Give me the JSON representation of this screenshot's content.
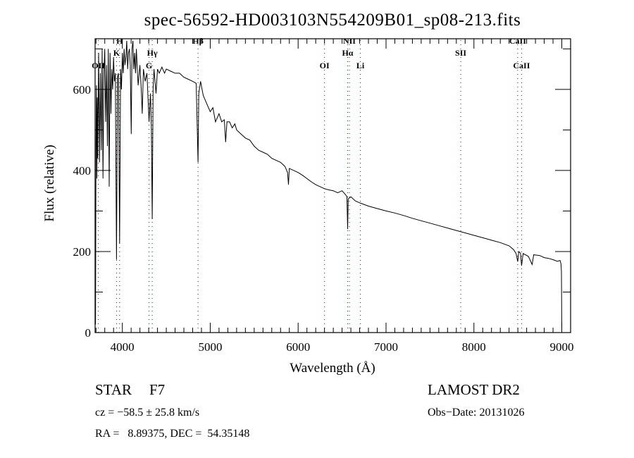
{
  "chart_data": {
    "type": "line",
    "title": "spec-56592-HD003103N554209B01_sp08-213.fits",
    "xlabel": "Wavelength (Å)",
    "ylabel": "Flux (relative)",
    "xlim": [
      3690,
      9100
    ],
    "ylim": [
      0,
      725
    ],
    "xticks": [
      4000,
      5000,
      6000,
      7000,
      8000,
      9000
    ],
    "yticks": [
      0,
      200,
      400,
      600
    ],
    "grid": false,
    "line_color": "#000000",
    "marker_line_color": "#8b0000",
    "lines": [
      {
        "name": "OII",
        "wavelength": 3727,
        "row": 3
      },
      {
        "name": "K",
        "wavelength": 3934,
        "row": 2
      },
      {
        "name": "H",
        "wavelength": 3969,
        "row": 1
      },
      {
        "name": "G",
        "wavelength": 4304,
        "row": 3
      },
      {
        "name": "Hγ",
        "wavelength": 4340,
        "row": 2
      },
      {
        "name": "Hβ",
        "wavelength": 4861,
        "row": 1
      },
      {
        "name": "OI",
        "wavelength": 6300,
        "row": 3
      },
      {
        "name": "Hα",
        "wavelength": 6563,
        "row": 2
      },
      {
        "name": "NII",
        "wavelength": 6583,
        "row": 1
      },
      {
        "name": "Li",
        "wavelength": 6708,
        "row": 3
      },
      {
        "name": "SII",
        "wavelength": 7850,
        "row": 2
      },
      {
        "name": "CaII",
        "wavelength": 8498,
        "row": 1
      },
      {
        "name": "CaII",
        "wavelength": 8542,
        "row": 3
      }
    ],
    "series": [
      {
        "name": "spectrum",
        "x": [
          3695,
          3700,
          3705,
          3710,
          3715,
          3720,
          3730,
          3740,
          3750,
          3760,
          3770,
          3780,
          3790,
          3800,
          3810,
          3820,
          3830,
          3840,
          3850,
          3860,
          3870,
          3880,
          3890,
          3900,
          3910,
          3920,
          3934,
          3945,
          3955,
          3969,
          3980,
          3990,
          4000,
          4010,
          4020,
          4030,
          4040,
          4050,
          4060,
          4070,
          4080,
          4090,
          4101,
          4110,
          4120,
          4130,
          4140,
          4150,
          4160,
          4170,
          4180,
          4200,
          4215,
          4226,
          4240,
          4260,
          4280,
          4304,
          4320,
          4330,
          4340,
          4350,
          4360,
          4383,
          4400,
          4420,
          4450,
          4480,
          4500,
          4550,
          4600,
          4650,
          4700,
          4750,
          4800,
          4840,
          4861,
          4870,
          4890,
          4920,
          4950,
          5000,
          5030,
          5060,
          5100,
          5130,
          5160,
          5175,
          5190,
          5220,
          5250,
          5280,
          5300,
          5350,
          5400,
          5450,
          5500,
          5550,
          5600,
          5650,
          5700,
          5750,
          5800,
          5850,
          5880,
          5890,
          5900,
          5950,
          6000,
          6050,
          6100,
          6150,
          6200,
          6250,
          6300,
          6350,
          6400,
          6450,
          6500,
          6540,
          6555,
          6563,
          6570,
          6600,
          6650,
          6700,
          6800,
          6900,
          7000,
          7100,
          7200,
          7300,
          7400,
          7500,
          7600,
          7700,
          7800,
          7900,
          8000,
          8100,
          8200,
          8300,
          8400,
          8450,
          8480,
          8498,
          8510,
          8530,
          8542,
          8560,
          8620,
          8662,
          8680,
          8750,
          8800,
          8850,
          8900,
          8950,
          8980,
          8990,
          8996,
          9000
        ],
        "y": [
          20,
          450,
          610,
          380,
          580,
          430,
          690,
          420,
          640,
          450,
          700,
          380,
          640,
          700,
          520,
          660,
          460,
          700,
          360,
          690,
          540,
          650,
          600,
          680,
          620,
          640,
          180,
          630,
          640,
          220,
          650,
          600,
          690,
          640,
          700,
          660,
          680,
          720,
          650,
          690,
          700,
          660,
          490,
          700,
          720,
          650,
          690,
          640,
          700,
          650,
          610,
          660,
          600,
          540,
          650,
          620,
          640,
          520,
          590,
          500,
          280,
          600,
          650,
          590,
          650,
          640,
          655,
          640,
          650,
          645,
          640,
          640,
          630,
          625,
          620,
          615,
          420,
          590,
          620,
          585,
          570,
          545,
          555,
          520,
          540,
          520,
          525,
          470,
          520,
          520,
          505,
          515,
          500,
          490,
          480,
          475,
          460,
          450,
          445,
          440,
          430,
          425,
          420,
          410,
          395,
          365,
          405,
          400,
          395,
          388,
          380,
          372,
          365,
          360,
          355,
          352,
          350,
          345,
          350,
          340,
          335,
          255,
          330,
          335,
          325,
          320,
          312,
          306,
          300,
          295,
          289,
          282,
          276,
          270,
          264,
          258,
          252,
          246,
          240,
          234,
          228,
          222,
          214,
          205,
          195,
          175,
          200,
          196,
          165,
          195,
          188,
          168,
          192,
          190,
          185,
          183,
          180,
          176,
          178,
          170,
          150,
          0
        ]
      }
    ]
  },
  "footer": {
    "class_label": "STAR",
    "subclass": "F7",
    "redshift": "cz = −58.5 ± 25.8 km/s",
    "coords": "RA =   8.89375, DEC =  54.35148",
    "survey": "LAMOST DR2",
    "obs_date": "Obs−Date: 20131026"
  }
}
